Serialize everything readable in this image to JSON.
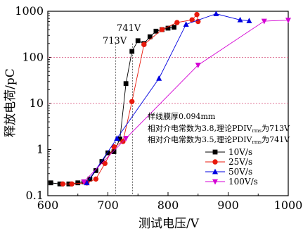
{
  "chart_data": {
    "type": "line",
    "xlabel": "测试电压/V",
    "ylabel": "释放电荷/pC",
    "xlim": [
      600,
      1000
    ],
    "ylim": [
      0.1,
      1000
    ],
    "yscale": "log",
    "xticks": [
      "600",
      "700",
      "800",
      "900",
      "1000"
    ],
    "yticks": [
      "0.1",
      "1",
      "10",
      "100",
      "1000"
    ],
    "grid": false,
    "legend_position": "center-right",
    "annotations": {
      "line1": "样线膜厚0.094mm",
      "line2": "相对介电常数为3.8,理论PDIV",
      "line2_sub": "rms",
      "line2_end": "为713V",
      "line3": "相对介电常数为3.5,理论PDIV",
      "line3_sub": "rms",
      "line3_end": "为741V",
      "label_713": "713V",
      "label_741": "741V"
    },
    "reference_lines": {
      "vertical": [
        713,
        741
      ],
      "horizontal": [
        10,
        100
      ]
    },
    "series": [
      {
        "name": "10V/s",
        "color": "#000000",
        "marker": "square",
        "x": [
          605,
          620,
          635,
          650,
          660,
          670,
          680,
          690,
          700,
          710,
          720,
          730,
          740,
          750,
          760,
          770,
          780,
          790,
          800,
          810
        ],
        "y": [
          0.19,
          0.18,
          0.18,
          0.19,
          0.2,
          0.23,
          0.35,
          0.55,
          0.85,
          0.9,
          1.7,
          27,
          135,
          230,
          200,
          280,
          370,
          400,
          430,
          450
        ]
      },
      {
        "name": "25V/s",
        "color": "#e8190c",
        "marker": "circle",
        "x": [
          625,
          640,
          665,
          680,
          695,
          710,
          725,
          740,
          760,
          790,
          815,
          840,
          848,
          850
        ],
        "y": [
          0.18,
          0.18,
          0.19,
          0.23,
          0.5,
          1.15,
          1.5,
          11,
          190,
          400,
          570,
          650,
          850,
          600
        ]
      },
      {
        "name": "50V/s",
        "color": "#0000e0",
        "marker": "triangle-up",
        "x": [
          665,
          715,
          785,
          830,
          880,
          920,
          935
        ],
        "y": [
          0.19,
          1.75,
          35,
          520,
          880,
          650,
          620
        ]
      },
      {
        "name": "100V/s",
        "color": "#d400d4",
        "marker": "triangle-down",
        "x": [
          660,
          730,
          850,
          960,
          1000
        ],
        "y": [
          0.2,
          1.75,
          68,
          610,
          640
        ]
      }
    ]
  }
}
